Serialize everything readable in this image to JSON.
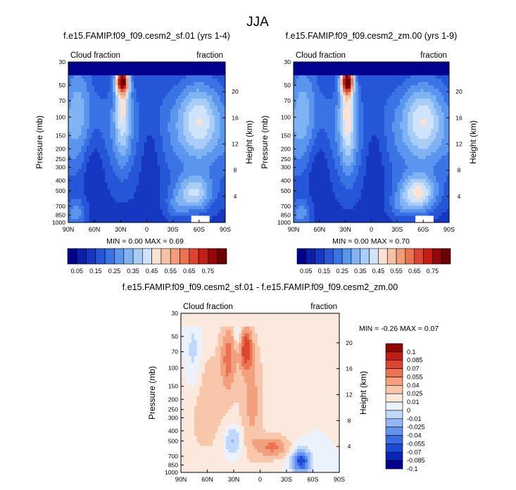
{
  "figure": {
    "title": "JJA",
    "colors": {
      "seq": [
        "#00008f",
        "#0c1fa5",
        "#1637c1",
        "#2556d8",
        "#3a74e4",
        "#5a95ee",
        "#7fb3f3",
        "#a8cdf7",
        "#cfe3fa",
        "#fbe2d3",
        "#f7c1a3",
        "#f39d78",
        "#ec7351",
        "#de4431",
        "#c31d16",
        "#96070a",
        "#6a0000"
      ],
      "diff": [
        "#00008f",
        "#0a26b8",
        "#1c49d6",
        "#3a6de5",
        "#6592ee",
        "#93b7f4",
        "#c2d8f8",
        "#ebf2fc",
        "#fce9dd",
        "#f8c7ab",
        "#f2a07e",
        "#ea7351",
        "#dc4530",
        "#c01d15",
        "#8f0a06"
      ]
    }
  },
  "chart_data": [
    {
      "type": "heatmap",
      "title": "f.e15.FAMIP.f09_f09.cesm2_sf.01 (yrs 1-4)",
      "left_label": "Cloud fraction",
      "right_label": "fraction",
      "ylabel": "Pressure (mb)",
      "ylabel_right": "Height (km)",
      "x_ticks": [
        "90N",
        "60N",
        "30N",
        "0",
        "30S",
        "60S",
        "90S"
      ],
      "y_ticks": [
        "30",
        "50",
        "70",
        "100",
        "150",
        "200",
        "250",
        "300",
        "400",
        "500",
        "700",
        "850",
        "1000"
      ],
      "height_ticks": [
        "20",
        "16",
        "12",
        "8",
        "4"
      ],
      "stats": "MIN =   0.00  MAX =  0.69",
      "colorbar_labels": [
        "0.05",
        "0.15",
        "0.25",
        "0.35",
        "0.45",
        "0.55",
        "0.65",
        "0.75"
      ],
      "min": 0.0,
      "max": 0.69
    },
    {
      "type": "heatmap",
      "title": "f.e15.FAMIP.f09_f09.cesm2_zm.00 (yrs 1-9)",
      "left_label": "Cloud fraction",
      "right_label": "fraction",
      "ylabel": "Pressure (mb)",
      "ylabel_right": "Height (km)",
      "x_ticks": [
        "90N",
        "60N",
        "30N",
        "0",
        "30S",
        "60S",
        "90S"
      ],
      "y_ticks": [
        "30",
        "50",
        "70",
        "100",
        "150",
        "200",
        "250",
        "300",
        "400",
        "500",
        "700",
        "850",
        "1000"
      ],
      "height_ticks": [
        "20",
        "16",
        "12",
        "8",
        "4"
      ],
      "stats": "MIN =   0.00  MAX =  0.70",
      "colorbar_labels": [
        "0.05",
        "0.15",
        "0.25",
        "0.35",
        "0.45",
        "0.55",
        "0.65",
        "0.75"
      ],
      "min": 0.0,
      "max": 0.7
    },
    {
      "type": "heatmap",
      "title": "f.e15.FAMIP.f09_f09.cesm2_sf.01 - f.e15.FAMIP.f09_f09.cesm2_zm.00",
      "left_label": "Cloud fraction",
      "right_label": "fraction",
      "ylabel": "Pressure (mb)",
      "ylabel_right": "Height (km)",
      "x_ticks": [
        "90N",
        "60N",
        "30N",
        "0",
        "30S",
        "60S",
        "90S"
      ],
      "y_ticks": [
        "30",
        "50",
        "70",
        "100",
        "150",
        "200",
        "250",
        "300",
        "400",
        "500",
        "700",
        "850",
        "1000"
      ],
      "height_ticks": [
        "20",
        "16",
        "12",
        "8",
        "4"
      ],
      "stats": "MIN = -0.26  MAX =  0.07",
      "colorbar_labels": [
        "0.1",
        "0.085",
        "0.07",
        "0.055",
        "0.04",
        "0.025",
        "0.01",
        "0",
        "-0.01",
        "-0.025",
        "-0.04",
        "-0.055",
        "-0.07",
        "-0.085",
        "-0.1"
      ],
      "min": -0.26,
      "max": 0.07
    }
  ]
}
